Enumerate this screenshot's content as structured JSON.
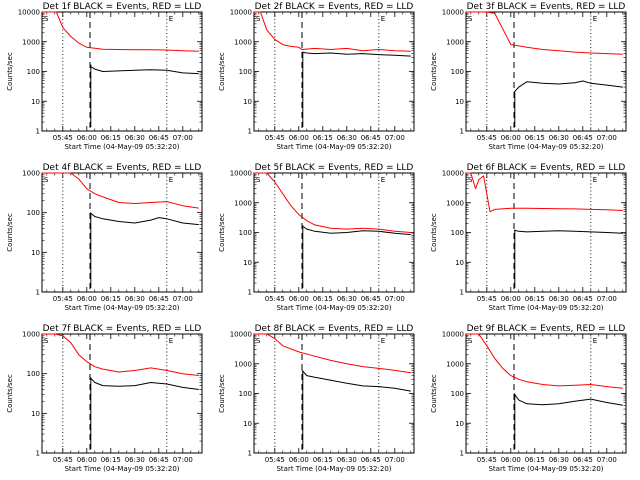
{
  "colors": {
    "events": "#000000",
    "lld": "#ff0000",
    "axes": "#000000",
    "background": "#ffffff"
  },
  "chart_data": [
    {
      "type": "line",
      "title": "Det 1f BLACK = Events, RED = LLD",
      "xlabel": "Start Time (04-May-09 05:32:20)",
      "ylabel": "Counts/sec",
      "yscale": "log",
      "ylim": [
        1,
        10000
      ],
      "xlim": [
        "05:32",
        "07:12"
      ],
      "xticks": [
        "05:45",
        "06:00",
        "06:15",
        "06:30",
        "06:45",
        "07:00"
      ],
      "yticks": [
        "1",
        "10",
        "100",
        "1000",
        "10000"
      ],
      "corner_labels": [
        "S",
        "E"
      ],
      "vlines_dotted": [
        "05:45",
        "06:50"
      ],
      "vlines_dashed": [
        "06:02"
      ],
      "series": [
        {
          "name": "LLD",
          "x": [
            "05:32",
            "05:41",
            "05:45",
            "05:50",
            "05:55",
            "06:00",
            "06:10",
            "06:20",
            "06:30",
            "06:40",
            "06:50",
            "07:00",
            "07:10"
          ],
          "y": [
            10000,
            10000,
            3000,
            1500,
            900,
            650,
            560,
            550,
            540,
            540,
            530,
            500,
            480
          ]
        },
        {
          "name": "Events",
          "x": [
            "06:02",
            "06:03",
            "06:05",
            "06:10",
            "06:20",
            "06:30",
            "06:40",
            "06:50",
            "07:00",
            "07:10"
          ],
          "y": [
            170,
            140,
            120,
            100,
            105,
            110,
            115,
            110,
            90,
            85
          ]
        }
      ]
    },
    {
      "type": "line",
      "title": "Det 2f BLACK = Events, RED = LLD",
      "xlabel": "Start Time (04-May-09 05:32:20)",
      "ylabel": "Counts/sec",
      "yscale": "log",
      "ylim": [
        1,
        10000
      ],
      "xlim": [
        "05:32",
        "07:12"
      ],
      "xticks": [
        "05:45",
        "06:00",
        "06:15",
        "06:30",
        "06:45",
        "07:00"
      ],
      "yticks": [
        "1",
        "10",
        "100",
        "1000",
        "10000"
      ],
      "corner_labels": [
        "S",
        "E"
      ],
      "vlines_dotted": [
        "05:45",
        "06:50"
      ],
      "vlines_dashed": [
        "06:02"
      ],
      "series": [
        {
          "name": "LLD",
          "x": [
            "05:32",
            "05:36",
            "05:40",
            "05:45",
            "05:50",
            "05:55",
            "06:00",
            "06:02",
            "06:10",
            "06:20",
            "06:30",
            "06:40",
            "06:50",
            "07:00",
            "07:10"
          ],
          "y": [
            10000,
            10000,
            2500,
            1200,
            800,
            700,
            650,
            550,
            600,
            550,
            600,
            500,
            550,
            500,
            480
          ]
        },
        {
          "name": "Events",
          "x": [
            "06:02",
            "06:05",
            "06:10",
            "06:20",
            "06:30",
            "06:40",
            "06:50",
            "07:00",
            "07:10"
          ],
          "y": [
            450,
            420,
            400,
            420,
            380,
            400,
            370,
            350,
            330
          ]
        }
      ]
    },
    {
      "type": "line",
      "title": "Det 3f BLACK = Events, RED = LLD",
      "xlabel": "Start Time (04-May-09 05:32:20)",
      "ylabel": "Counts/sec",
      "yscale": "log",
      "ylim": [
        1,
        10000
      ],
      "xlim": [
        "05:32",
        "07:12"
      ],
      "xticks": [
        "05:45",
        "06:00",
        "06:15",
        "06:30",
        "06:45",
        "07:00"
      ],
      "yticks": [
        "1",
        "10",
        "100",
        "1000",
        "10000"
      ],
      "corner_labels": [
        "S",
        "E"
      ],
      "vlines_dotted": [
        "05:45",
        "06:50"
      ],
      "vlines_dashed": [
        "06:02"
      ],
      "series": [
        {
          "name": "LLD",
          "x": [
            "05:32",
            "05:40",
            "05:45",
            "05:50",
            "06:00",
            "06:10",
            "06:20",
            "06:30",
            "06:40",
            "06:50",
            "07:00",
            "07:10"
          ],
          "y": [
            10000,
            10000,
            10000,
            9000,
            800,
            650,
            550,
            500,
            450,
            420,
            400,
            380
          ]
        },
        {
          "name": "Events",
          "x": [
            "06:02",
            "06:05",
            "06:10",
            "06:20",
            "06:30",
            "06:40",
            "06:45",
            "06:50",
            "07:00",
            "07:10"
          ],
          "y": [
            20,
            30,
            45,
            40,
            38,
            42,
            48,
            40,
            35,
            30
          ]
        }
      ]
    },
    {
      "type": "line",
      "title": "Det 4f BLACK = Events, RED = LLD",
      "xlabel": "Start Time (04-May-09 05:32:20)",
      "ylabel": "Counts/sec",
      "yscale": "log",
      "ylim": [
        1,
        1000
      ],
      "xlim": [
        "05:32",
        "07:12"
      ],
      "xticks": [
        "05:45",
        "06:00",
        "06:15",
        "06:30",
        "06:45",
        "07:00"
      ],
      "yticks": [
        "1",
        "10",
        "100",
        "1000"
      ],
      "corner_labels": [
        "S",
        "E"
      ],
      "vlines_dotted": [
        "05:45",
        "06:50"
      ],
      "vlines_dashed": [
        "06:02"
      ],
      "series": [
        {
          "name": "LLD",
          "x": [
            "05:32",
            "05:50",
            "05:55",
            "06:00",
            "06:05",
            "06:10",
            "06:20",
            "06:30",
            "06:40",
            "06:50",
            "07:00",
            "07:10"
          ],
          "y": [
            1000,
            1000,
            700,
            400,
            300,
            250,
            180,
            170,
            180,
            190,
            150,
            130
          ]
        },
        {
          "name": "Events",
          "x": [
            "06:02",
            "06:05",
            "06:10",
            "06:20",
            "06:30",
            "06:40",
            "06:45",
            "06:50",
            "07:00",
            "07:10"
          ],
          "y": [
            100,
            80,
            70,
            60,
            55,
            65,
            75,
            70,
            55,
            50
          ]
        }
      ]
    },
    {
      "type": "line",
      "title": "Det 5f BLACK = Events, RED = LLD",
      "xlabel": "Start Time (04-May-09 05:32:20)",
      "ylabel": "Counts/sec",
      "yscale": "log",
      "ylim": [
        1,
        10000
      ],
      "xlim": [
        "05:32",
        "07:12"
      ],
      "xticks": [
        "05:45",
        "06:00",
        "06:15",
        "06:30",
        "06:45",
        "07:00"
      ],
      "yticks": [
        "1",
        "10",
        "100",
        "1000",
        "10000"
      ],
      "corner_labels": [
        "S",
        "E"
      ],
      "vlines_dotted": [
        "05:45",
        "06:50"
      ],
      "vlines_dashed": [
        "06:02"
      ],
      "series": [
        {
          "name": "LLD",
          "x": [
            "05:32",
            "05:40",
            "05:45",
            "05:50",
            "05:55",
            "06:00",
            "06:05",
            "06:10",
            "06:20",
            "06:30",
            "06:40",
            "06:50",
            "07:00",
            "07:10"
          ],
          "y": [
            10000,
            10000,
            5000,
            2000,
            800,
            400,
            250,
            180,
            140,
            130,
            140,
            130,
            110,
            100
          ]
        },
        {
          "name": "Events",
          "x": [
            "06:02",
            "06:05",
            "06:10",
            "06:20",
            "06:30",
            "06:40",
            "06:50",
            "07:00",
            "07:10"
          ],
          "y": [
            170,
            130,
            110,
            95,
            100,
            115,
            110,
            95,
            85
          ]
        }
      ]
    },
    {
      "type": "line",
      "title": "Det 6f BLACK = Events, RED = LLD",
      "xlabel": "Start Time (04-May-09 05:32:20)",
      "ylabel": "Counts/sec",
      "yscale": "log",
      "ylim": [
        1,
        10000
      ],
      "xlim": [
        "05:32",
        "07:12"
      ],
      "xticks": [
        "05:45",
        "06:00",
        "06:15",
        "06:30",
        "06:45",
        "07:00"
      ],
      "yticks": [
        "1",
        "10",
        "100",
        "1000",
        "10000"
      ],
      "corner_labels": [
        "S",
        "E"
      ],
      "vlines_dotted": [
        "05:45",
        "06:50"
      ],
      "vlines_dashed": [
        "06:02"
      ],
      "series": [
        {
          "name": "LLD",
          "x": [
            "05:32",
            "05:35",
            "05:38",
            "05:40",
            "05:43",
            "05:45",
            "05:47",
            "05:50",
            "06:00",
            "06:10",
            "06:20",
            "06:30",
            "06:40",
            "06:50",
            "07:00",
            "07:10"
          ],
          "y": [
            10000,
            10000,
            3000,
            6000,
            8000,
            2000,
            500,
            600,
            650,
            650,
            640,
            630,
            620,
            600,
            580,
            550
          ]
        },
        {
          "name": "Events",
          "x": [
            "06:02",
            "06:05",
            "06:10",
            "06:20",
            "06:30",
            "06:40",
            "06:50",
            "07:00",
            "07:10"
          ],
          "y": [
            120,
            110,
            105,
            110,
            115,
            110,
            105,
            100,
            95
          ]
        }
      ]
    },
    {
      "type": "line",
      "title": "Det 7f BLACK = Events, RED = LLD",
      "xlabel": "Start Time (04-May-09 05:32:20)",
      "ylabel": "Counts/sec",
      "yscale": "log",
      "ylim": [
        1,
        1000
      ],
      "xlim": [
        "05:32",
        "07:12"
      ],
      "xticks": [
        "05:45",
        "06:00",
        "06:15",
        "06:30",
        "06:45",
        "07:00"
      ],
      "yticks": [
        "1",
        "10",
        "100",
        "1000"
      ],
      "corner_labels": [
        "S",
        "E"
      ],
      "vlines_dotted": [
        "05:45",
        "06:50"
      ],
      "vlines_dashed": [
        "06:02"
      ],
      "series": [
        {
          "name": "LLD",
          "x": [
            "05:32",
            "05:40",
            "05:45",
            "05:50",
            "05:55",
            "06:00",
            "06:05",
            "06:10",
            "06:20",
            "06:30",
            "06:40",
            "06:50",
            "07:00",
            "07:10"
          ],
          "y": [
            1000,
            1000,
            900,
            600,
            300,
            200,
            150,
            130,
            110,
            120,
            140,
            120,
            100,
            90
          ]
        },
        {
          "name": "Events",
          "x": [
            "06:02",
            "06:05",
            "06:10",
            "06:20",
            "06:30",
            "06:40",
            "06:50",
            "07:00",
            "07:10"
          ],
          "y": [
            80,
            60,
            50,
            48,
            50,
            60,
            55,
            45,
            40
          ]
        }
      ]
    },
    {
      "type": "line",
      "title": "Det 8f BLACK = Events, RED = LLD",
      "xlabel": "Start Time (04-May-09 05:32:20)",
      "ylabel": "Counts/sec",
      "yscale": "log",
      "ylim": [
        1,
        10000
      ],
      "xlim": [
        "05:32",
        "07:12"
      ],
      "xticks": [
        "05:45",
        "06:00",
        "06:15",
        "06:30",
        "06:45",
        "07:00"
      ],
      "yticks": [
        "1",
        "10",
        "100",
        "1000",
        "10000"
      ],
      "corner_labels": [
        "S",
        "E"
      ],
      "vlines_dotted": [
        "05:45",
        "06:50"
      ],
      "vlines_dashed": [
        "06:02"
      ],
      "series": [
        {
          "name": "LLD",
          "x": [
            "05:32",
            "05:40",
            "05:45",
            "05:50",
            "06:00",
            "06:10",
            "06:20",
            "06:30",
            "06:40",
            "06:50",
            "07:00",
            "07:10"
          ],
          "y": [
            10000,
            10000,
            7000,
            4000,
            2500,
            1800,
            1300,
            1000,
            800,
            700,
            600,
            500
          ]
        },
        {
          "name": "Events",
          "x": [
            "06:02",
            "06:05",
            "06:10",
            "06:20",
            "06:30",
            "06:40",
            "06:50",
            "07:00",
            "07:10"
          ],
          "y": [
            600,
            400,
            350,
            280,
            220,
            180,
            170,
            150,
            120
          ]
        }
      ]
    },
    {
      "type": "line",
      "title": "Det 9f BLACK = Events, RED = LLD",
      "xlabel": "Start Time (04-May-09 05:32:20)",
      "ylabel": "Counts/sec",
      "yscale": "log",
      "ylim": [
        1,
        10000
      ],
      "xlim": [
        "05:32",
        "07:12"
      ],
      "xticks": [
        "05:45",
        "06:00",
        "06:15",
        "06:30",
        "06:45",
        "07:00"
      ],
      "yticks": [
        "1",
        "10",
        "100",
        "1000",
        "10000"
      ],
      "corner_labels": [
        "S",
        "E"
      ],
      "vlines_dotted": [
        "05:45",
        "06:50"
      ],
      "vlines_dashed": [
        "06:02"
      ],
      "series": [
        {
          "name": "LLD",
          "x": [
            "05:32",
            "05:40",
            "05:45",
            "05:50",
            "05:55",
            "06:00",
            "06:05",
            "06:10",
            "06:20",
            "06:30",
            "06:40",
            "06:50",
            "07:00",
            "07:10"
          ],
          "y": [
            10000,
            10000,
            4000,
            1500,
            700,
            400,
            300,
            250,
            200,
            180,
            190,
            200,
            170,
            150
          ]
        },
        {
          "name": "Events",
          "x": [
            "06:02",
            "06:05",
            "06:10",
            "06:20",
            "06:30",
            "06:40",
            "06:50",
            "07:00",
            "07:10"
          ],
          "y": [
            100,
            60,
            45,
            42,
            45,
            55,
            65,
            50,
            40
          ]
        }
      ]
    }
  ]
}
